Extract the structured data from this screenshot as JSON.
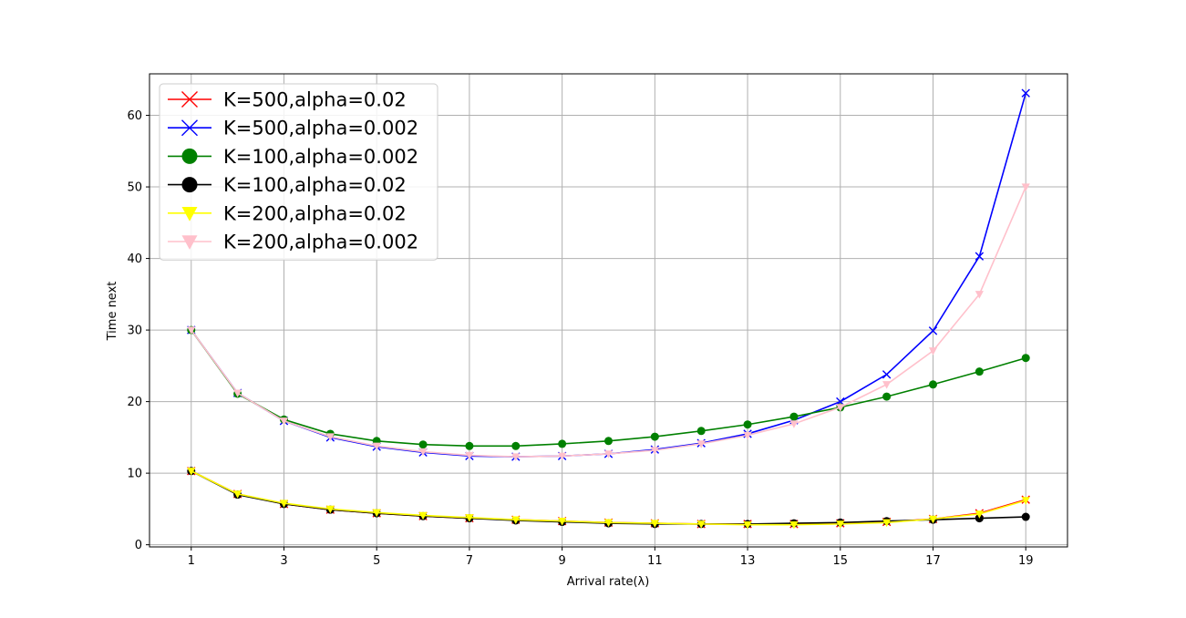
{
  "chart_data": {
    "type": "line",
    "title": "",
    "xlabel": "Arrival rate(λ)",
    "ylabel": "Time next",
    "x": [
      1,
      2,
      3,
      4,
      5,
      6,
      7,
      8,
      9,
      10,
      11,
      12,
      13,
      14,
      15,
      16,
      17,
      18,
      19
    ],
    "xticks": [
      "1",
      "3",
      "5",
      "7",
      "9",
      "11",
      "13",
      "15",
      "17",
      "19"
    ],
    "yticks": [
      "0",
      "10",
      "20",
      "30",
      "40",
      "50",
      "60"
    ],
    "xlim": [
      0.1,
      19.9
    ],
    "ylim": [
      -0.3,
      65.8
    ],
    "grid": true,
    "legend_position": "top-left",
    "series": [
      {
        "name": "K=500,alpha=0.02",
        "color": "#ff0000",
        "marker": "x",
        "values": [
          10.3,
          7.1,
          5.7,
          4.9,
          4.4,
          4.0,
          3.7,
          3.5,
          3.3,
          3.1,
          3.0,
          2.9,
          2.9,
          2.9,
          3.0,
          3.2,
          3.6,
          4.4,
          6.3
        ]
      },
      {
        "name": "K=500,alpha=0.002",
        "color": "#0000ff",
        "marker": "x",
        "values": [
          30.0,
          21.2,
          17.3,
          15.0,
          13.7,
          12.9,
          12.4,
          12.3,
          12.4,
          12.7,
          13.3,
          14.2,
          15.5,
          17.4,
          20.0,
          23.8,
          29.9,
          40.3,
          63.1
        ]
      },
      {
        "name": "K=100,alpha=0.002",
        "color": "#008000",
        "marker": "circle",
        "values": [
          30.0,
          21.1,
          17.5,
          15.5,
          14.5,
          14.0,
          13.8,
          13.8,
          14.1,
          14.5,
          15.1,
          15.9,
          16.8,
          17.9,
          19.2,
          20.7,
          22.4,
          24.2,
          26.1
        ]
      },
      {
        "name": "K=100,alpha=0.02",
        "color": "#000000",
        "marker": "circle",
        "values": [
          10.3,
          7.0,
          5.7,
          4.9,
          4.4,
          4.0,
          3.7,
          3.4,
          3.2,
          3.0,
          2.9,
          2.9,
          2.9,
          3.0,
          3.1,
          3.3,
          3.5,
          3.7,
          3.9
        ]
      },
      {
        "name": "K=200,alpha=0.02",
        "color": "#ffff00",
        "marker": "triangle-down",
        "values": [
          10.3,
          7.1,
          5.8,
          5.0,
          4.5,
          4.1,
          3.8,
          3.5,
          3.3,
          3.1,
          3.0,
          2.9,
          2.8,
          2.8,
          2.9,
          3.1,
          3.6,
          4.3,
          6.2
        ]
      },
      {
        "name": "K=200,alpha=0.002",
        "color": "#ffc0cb",
        "marker": "triangle-down",
        "values": [
          30.0,
          21.2,
          17.3,
          15.1,
          13.8,
          13.0,
          12.5,
          12.3,
          12.4,
          12.7,
          13.2,
          14.1,
          15.3,
          16.9,
          19.2,
          22.4,
          27.1,
          35.0,
          50.0
        ]
      }
    ]
  }
}
